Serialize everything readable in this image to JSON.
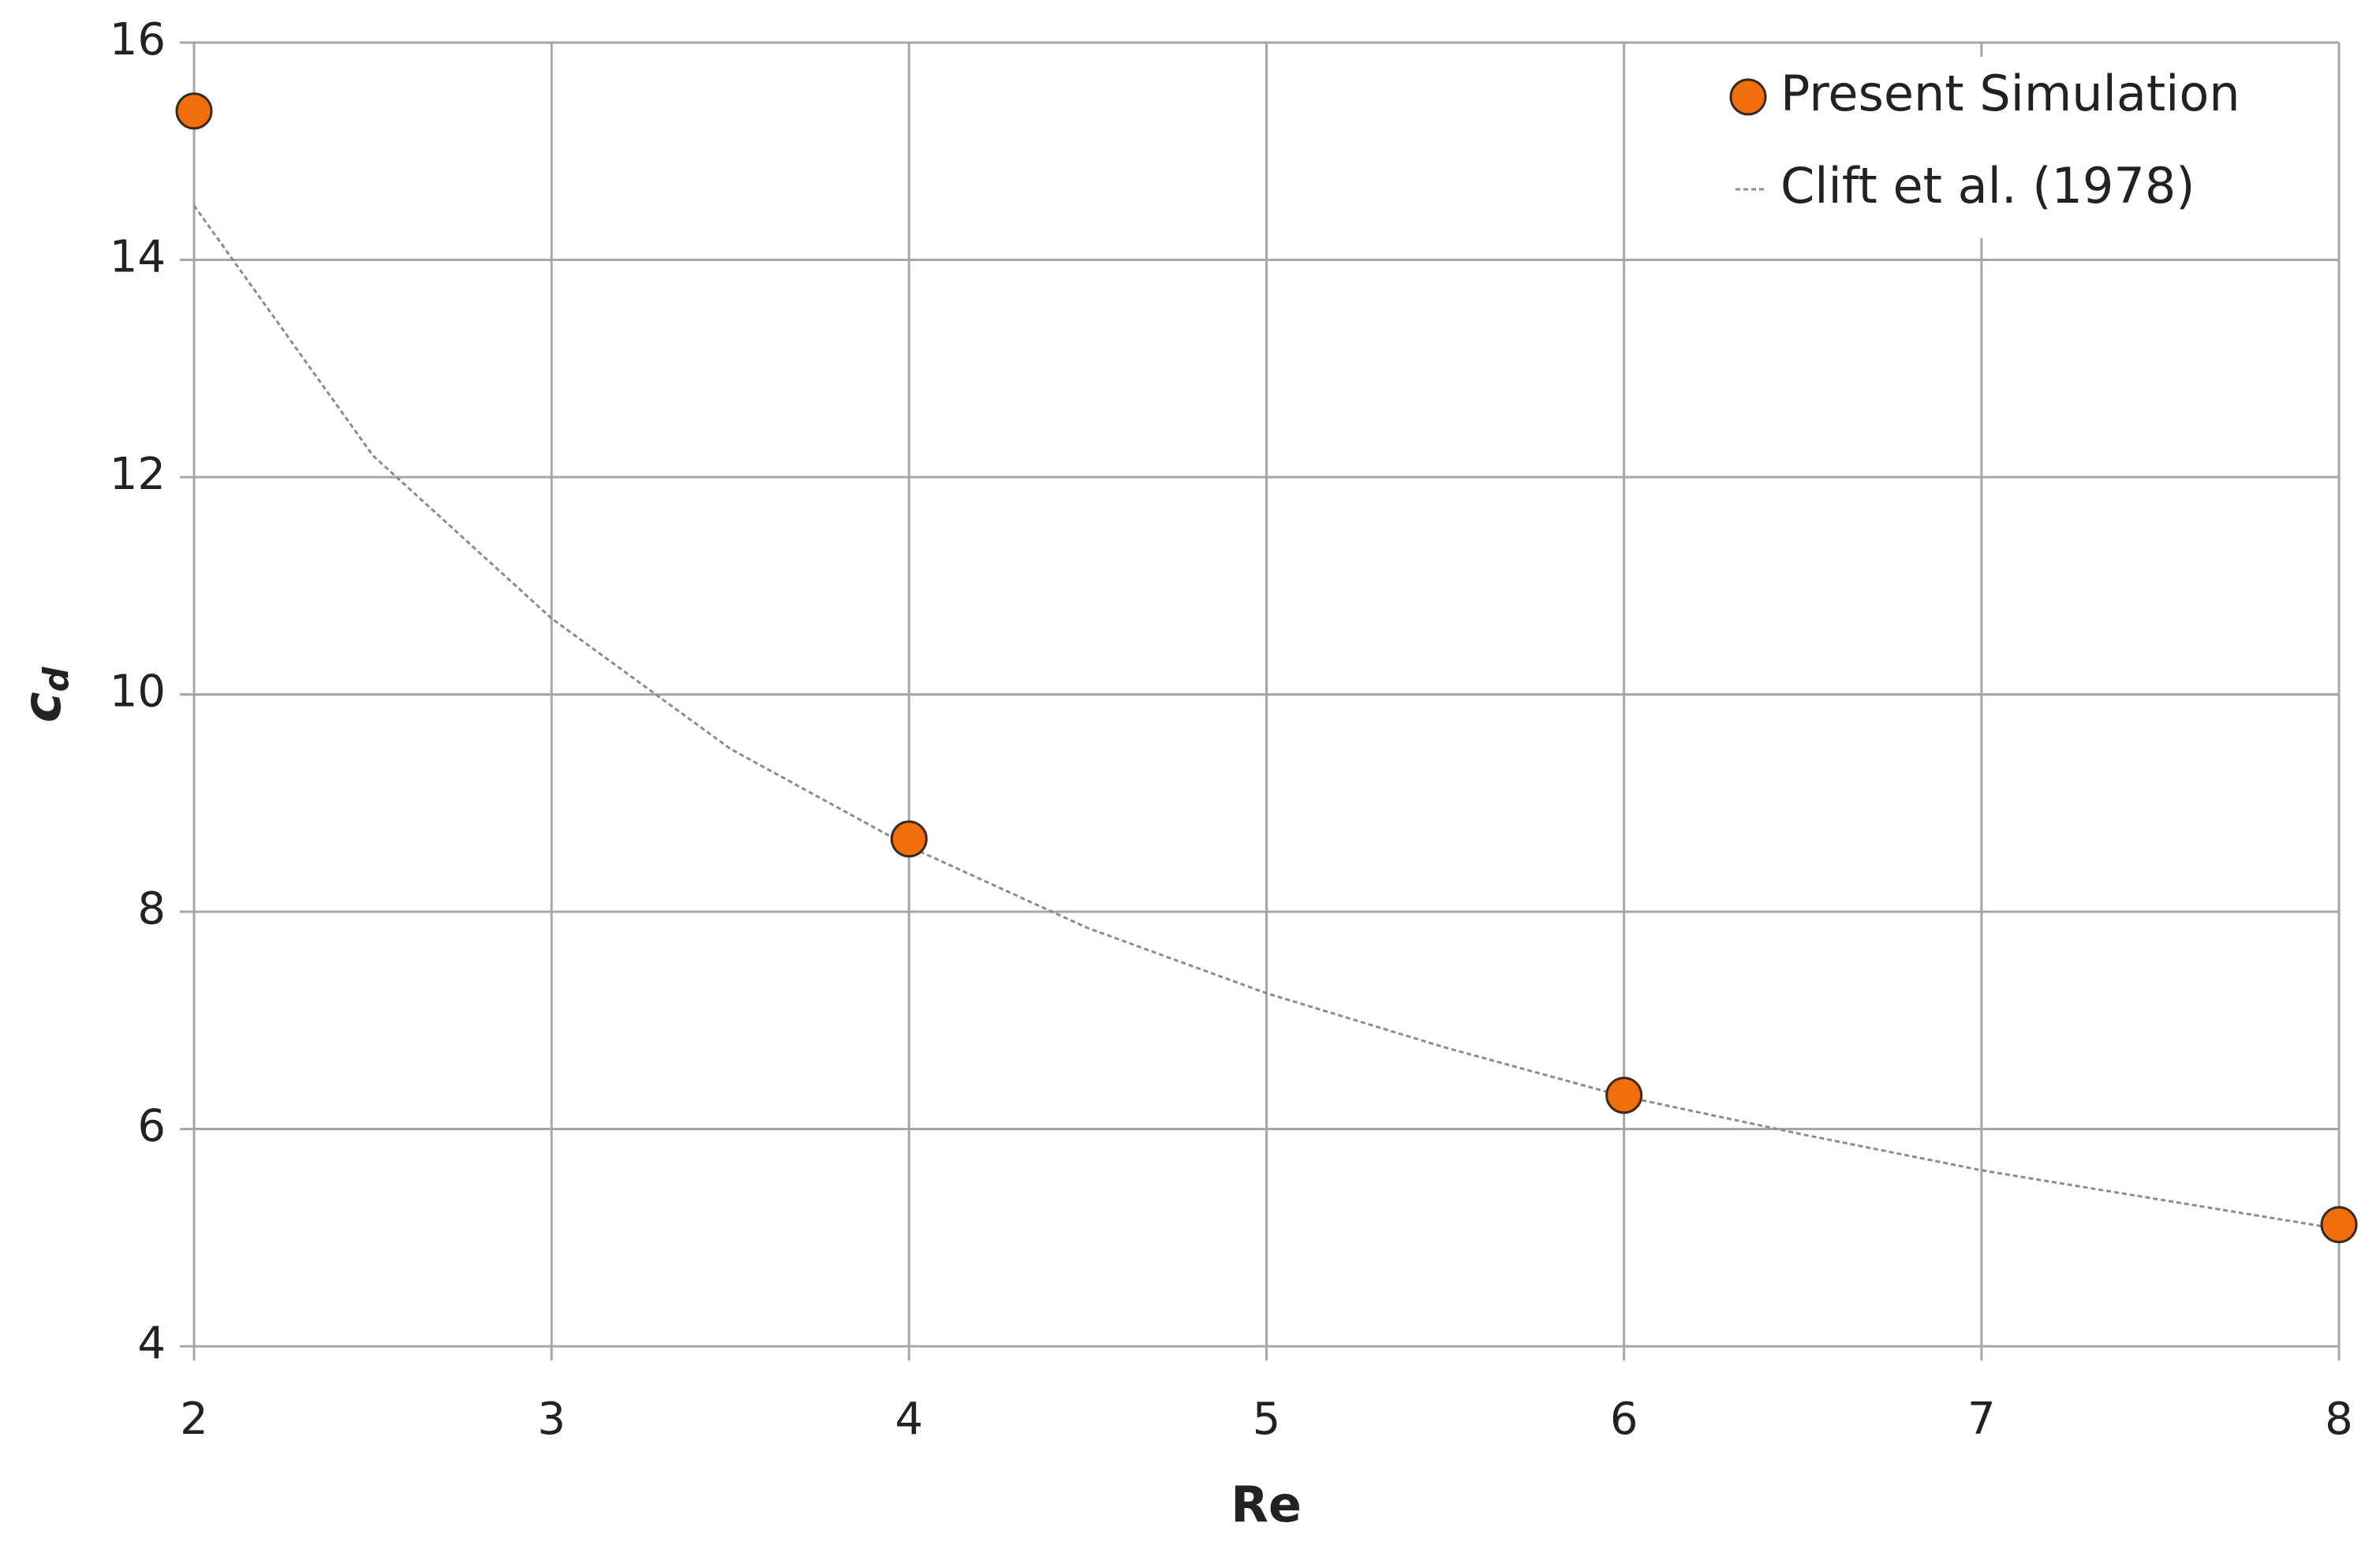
{
  "chart_data": {
    "type": "scatter",
    "x_label": "Re",
    "y_label": "c",
    "y_label_sub": "d",
    "xlim": [
      2,
      8
    ],
    "xticks": [
      2,
      3,
      4,
      5,
      6,
      7,
      8
    ],
    "ylim": [
      4,
      16
    ],
    "yticks": [
      4,
      6,
      8,
      10,
      12,
      14,
      16
    ],
    "grid": true,
    "legend": "upper right",
    "series": [
      {
        "name": "Present Simulation",
        "type": "scatter",
        "color": "#f26d0c",
        "x": [
          2,
          4,
          6,
          8
        ],
        "values": [
          15.37,
          8.67,
          6.31,
          5.12
        ]
      },
      {
        "name": "Clift et al. (1978)",
        "type": "line",
        "color": "#8c8c8c",
        "x": [
          2,
          2.5,
          3,
          3.5,
          4,
          4.5,
          5,
          5.5,
          6,
          6.5,
          7,
          7.5,
          8
        ],
        "values": [
          14.5,
          12.2,
          10.7,
          9.5,
          8.6,
          7.85,
          7.25,
          6.75,
          6.3,
          5.95,
          5.62,
          5.35,
          5.08
        ]
      }
    ]
  }
}
